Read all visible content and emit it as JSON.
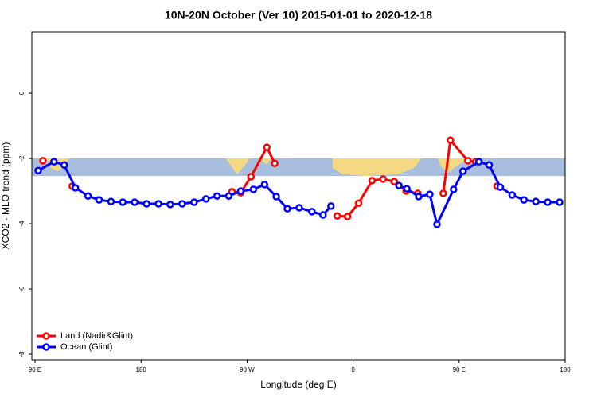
{
  "chart_data": {
    "type": "line",
    "title": "10N-20N October (Ver 10)   2015-01-01 to 2020-12-18",
    "x_label": "Longitude (deg E)",
    "y_label": "XCO2 - MLO trend (ppm)",
    "xlim": [
      87.3,
      540
    ],
    "ylim": [
      -8.17,
      1.88
    ],
    "xticks": [
      {
        "value": 90,
        "label": "90 E"
      },
      180,
      {
        "value": 270,
        "label": "90 W"
      },
      {
        "value": 360,
        "label": "0"
      },
      {
        "value": 450,
        "label": "90 E"
      },
      {
        "value": 540,
        "label": "180"
      }
    ],
    "yticks": [
      0,
      -2,
      -4,
      -6,
      -8
    ],
    "legend": "bottom-left",
    "series": [
      {
        "name": "Land (Nadir&Glint)",
        "color": "#ff0000",
        "x": [
          96.7,
          null,
          121.6,
          null,
          257.2,
          264.6,
          273.3,
          286.8,
          293.5,
          null,
          346.6,
          355.3,
          364.7,
          376.1,
          385.5,
          394.9,
          405.0,
          415.0,
          null,
          436.5,
          442.6,
          457.4,
          464.1,
          null,
          482.2
        ],
        "values": [
          -2.07,
          null,
          -2.85,
          null,
          -3.02,
          -3.05,
          -2.56,
          -1.66,
          -2.15,
          null,
          -3.76,
          -3.78,
          -3.37,
          -2.68,
          -2.63,
          -2.71,
          -3.0,
          -3.07,
          null,
          -3.07,
          -1.44,
          -2.07,
          -2.1,
          null,
          -2.85
        ]
      },
      {
        "name": "Ocean (Glint)",
        "color": "#0000ff",
        "x": [
          92.7,
          106.1,
          114.8,
          124.3,
          135.0,
          144.4,
          154.5,
          164.5,
          174.6,
          184.7,
          194.8,
          204.8,
          214.9,
          225.0,
          235.1,
          244.5,
          254.5,
          264.6,
          275.4,
          284.8,
          294.8,
          304.2,
          314.3,
          325.1,
          334.5,
          341.2,
          null,
          398.9,
          405.6,
          415.7,
          425.1,
          431.2,
          445.3,
          453.3,
          466.8,
          475.5,
          484.9,
          495.0,
          505.0,
          515.1,
          525.2,
          535.3
        ],
        "values": [
          -2.37,
          -2.1,
          -2.2,
          -2.9,
          -3.15,
          -3.27,
          -3.32,
          -3.34,
          -3.34,
          -3.39,
          -3.39,
          -3.41,
          -3.39,
          -3.34,
          -3.24,
          -3.15,
          -3.15,
          -3.0,
          -2.95,
          -2.8,
          -3.17,
          -3.54,
          -3.51,
          -3.63,
          -3.73,
          -3.46,
          null,
          -2.83,
          -2.93,
          -3.17,
          -3.1,
          -4.02,
          -2.95,
          -2.39,
          -2.1,
          -2.2,
          -2.88,
          -3.12,
          -3.27,
          -3.32,
          -3.34,
          -3.34
        ]
      }
    ]
  }
}
